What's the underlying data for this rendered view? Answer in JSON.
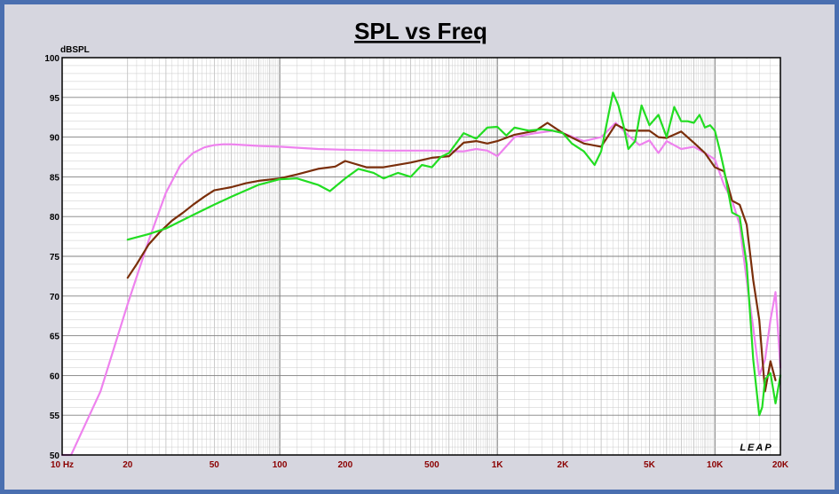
{
  "chart_data": {
    "type": "line",
    "title": "SPL vs Freq",
    "ylabel": "dBSPL",
    "xlabel": "",
    "x_scale": "log",
    "xlim": [
      10,
      20000
    ],
    "ylim": [
      50,
      100
    ],
    "grid": true,
    "y_ticks": [
      "100",
      "95",
      "90",
      "85",
      "80",
      "75",
      "70",
      "65",
      "60",
      "55",
      "50"
    ],
    "x_ticks": [
      {
        "value": 10,
        "label": "10  Hz"
      },
      {
        "value": 20,
        "label": "20"
      },
      {
        "value": 50,
        "label": "50"
      },
      {
        "value": 100,
        "label": "100"
      },
      {
        "value": 200,
        "label": "200"
      },
      {
        "value": 500,
        "label": "500"
      },
      {
        "value": 1000,
        "label": "1K"
      },
      {
        "value": 2000,
        "label": "2K"
      },
      {
        "value": 5000,
        "label": "5K"
      },
      {
        "value": 10000,
        "label": "10K"
      },
      {
        "value": 20000,
        "label": "20K"
      }
    ],
    "brand_label": "LEAP",
    "colors": {
      "pink": "#ee82ee",
      "brown": "#7a2e0a",
      "green": "#22dd22",
      "grid": "#a0a0a0",
      "frame": "#4a6fb0"
    },
    "series": [
      {
        "color": "#ee82ee",
        "x": [
          10,
          11,
          15,
          20,
          25,
          30,
          35,
          40,
          45,
          50,
          55,
          60,
          80,
          100,
          150,
          200,
          300,
          500,
          700,
          800,
          900,
          1000,
          1200,
          1500,
          1800,
          2000,
          2500,
          3000,
          3500,
          4000,
          4500,
          5000,
          5500,
          6000,
          7000,
          8000,
          9000,
          10000,
          11000,
          12000,
          13000,
          14000,
          15000,
          16000,
          17000,
          18000,
          19000,
          20000
        ],
        "y": [
          50,
          50,
          58,
          69,
          77,
          83,
          86.5,
          88,
          88.7,
          89,
          89.1,
          89.1,
          88.9,
          88.8,
          88.5,
          88.4,
          88.3,
          88.3,
          88.2,
          88.5,
          88.3,
          87.6,
          90,
          90.5,
          90.8,
          90.5,
          89.5,
          90,
          91.8,
          90.2,
          89,
          89.6,
          88,
          89.5,
          88.5,
          88.8,
          88,
          87.2,
          84,
          82,
          79,
          72,
          66,
          60,
          62,
          67,
          70.5,
          61
        ]
      },
      {
        "color": "#7a2e0a",
        "x": [
          20,
          22,
          25,
          28,
          32,
          36,
          40,
          45,
          50,
          60,
          70,
          80,
          100,
          120,
          150,
          180,
          200,
          250,
          300,
          400,
          500,
          600,
          700,
          800,
          900,
          1000,
          1200,
          1500,
          1700,
          2000,
          2500,
          3000,
          3500,
          4000,
          5000,
          5500,
          6000,
          7000,
          8000,
          9000,
          10000,
          11000,
          12000,
          13000,
          14000,
          15000,
          16000,
          17000,
          18000,
          19000
        ],
        "y": [
          72.3,
          74,
          76.5,
          78,
          79.5,
          80.5,
          81.5,
          82.5,
          83.3,
          83.7,
          84.2,
          84.5,
          84.8,
          85.3,
          86,
          86.3,
          87,
          86.2,
          86.2,
          86.8,
          87.4,
          87.6,
          89.3,
          89.5,
          89.2,
          89.5,
          90.3,
          90.8,
          91.8,
          90.5,
          89.2,
          88.8,
          91.6,
          90.8,
          90.8,
          90,
          89.9,
          90.7,
          89.3,
          88,
          86.2,
          85.7,
          82,
          81.5,
          79,
          72,
          67,
          58,
          61.8,
          59.4
        ]
      },
      {
        "color": "#22dd22",
        "x": [
          20,
          25,
          30,
          40,
          50,
          60,
          80,
          100,
          120,
          150,
          170,
          200,
          230,
          270,
          300,
          350,
          400,
          450,
          500,
          550,
          600,
          700,
          800,
          900,
          1000,
          1100,
          1200,
          1400,
          1600,
          1800,
          2000,
          2200,
          2500,
          2800,
          3000,
          3200,
          3400,
          3600,
          3800,
          4000,
          4300,
          4600,
          5000,
          5500,
          6000,
          6500,
          7000,
          7500,
          8000,
          8500,
          9000,
          9500,
          10000,
          10500,
          11000,
          12000,
          13000,
          14000,
          15000,
          16000,
          16500,
          17000,
          18000,
          19000,
          20000
        ],
        "y": [
          77.1,
          77.8,
          78.5,
          80.2,
          81.5,
          82.5,
          84,
          84.7,
          84.8,
          84,
          83.2,
          84.8,
          86,
          85.5,
          84.8,
          85.5,
          85,
          86.5,
          86.2,
          87.5,
          88,
          90.5,
          89.8,
          91.2,
          91.3,
          90.2,
          91.2,
          90.8,
          91,
          90.8,
          90.5,
          89.2,
          88.2,
          86.5,
          88.2,
          92,
          95.6,
          94,
          91.5,
          88.5,
          89.5,
          94,
          91.5,
          92.8,
          90,
          93.8,
          92,
          92,
          91.8,
          92.8,
          91.2,
          91.5,
          90.8,
          88.5,
          86,
          80.5,
          80,
          74,
          62,
          55,
          56,
          59.5,
          60.3,
          56.5,
          60
        ]
      }
    ]
  }
}
